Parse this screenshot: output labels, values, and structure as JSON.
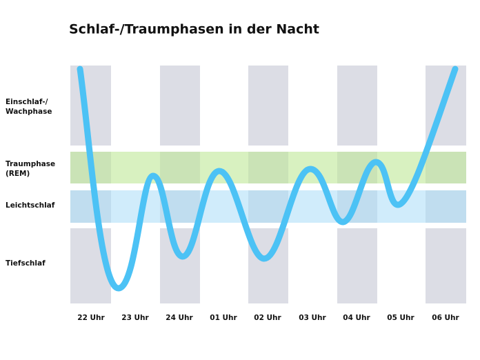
{
  "title": "Schlaf-/Traumphasen in der Nacht",
  "phases": [
    {
      "lines": [
        "Einschlaf-/",
        "Wachphase"
      ]
    },
    {
      "lines": [
        "Traumphase",
        "(REM)"
      ]
    },
    {
      "lines": [
        "Leichtschlaf"
      ]
    },
    {
      "lines": [
        "Tiefschlaf"
      ]
    }
  ],
  "times": [
    "22 Uhr",
    "23 Uhr",
    "24 Uhr",
    "01 Uhr",
    "02 Uhr",
    "03 Uhr",
    "04 Uhr",
    "05 Uhr",
    "06 Uhr"
  ]
}
